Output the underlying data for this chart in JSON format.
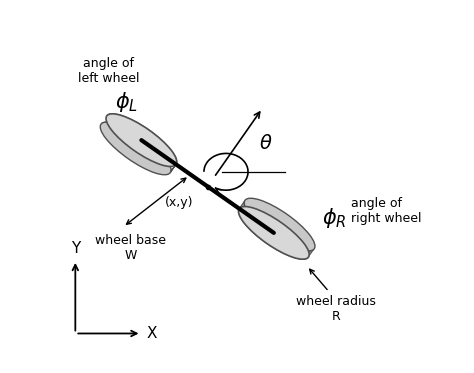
{
  "background_color": "#ffffff",
  "figsize": [
    4.74,
    3.73
  ],
  "dpi": 100,
  "wheel_color_face": "#c8c8c8",
  "wheel_color_side": "#a0a0a0",
  "wheel_color_top": "#d8d8d8",
  "wheel_edge_color": "#505050",
  "axle_color": "#000000",
  "labels": {
    "angle_left_wheel": "angle of\nleft wheel",
    "phi_L": "$\\phi_L$",
    "angle_right_wheel": "angle of\nright wheel",
    "phi_R": "$\\phi_R$",
    "theta": "$\\theta$",
    "xy": "(x,y)",
    "wheel_base": "wheel base\nW",
    "wheel_radius": "wheel radius\nR",
    "X_axis": "X",
    "Y_axis": "Y"
  }
}
